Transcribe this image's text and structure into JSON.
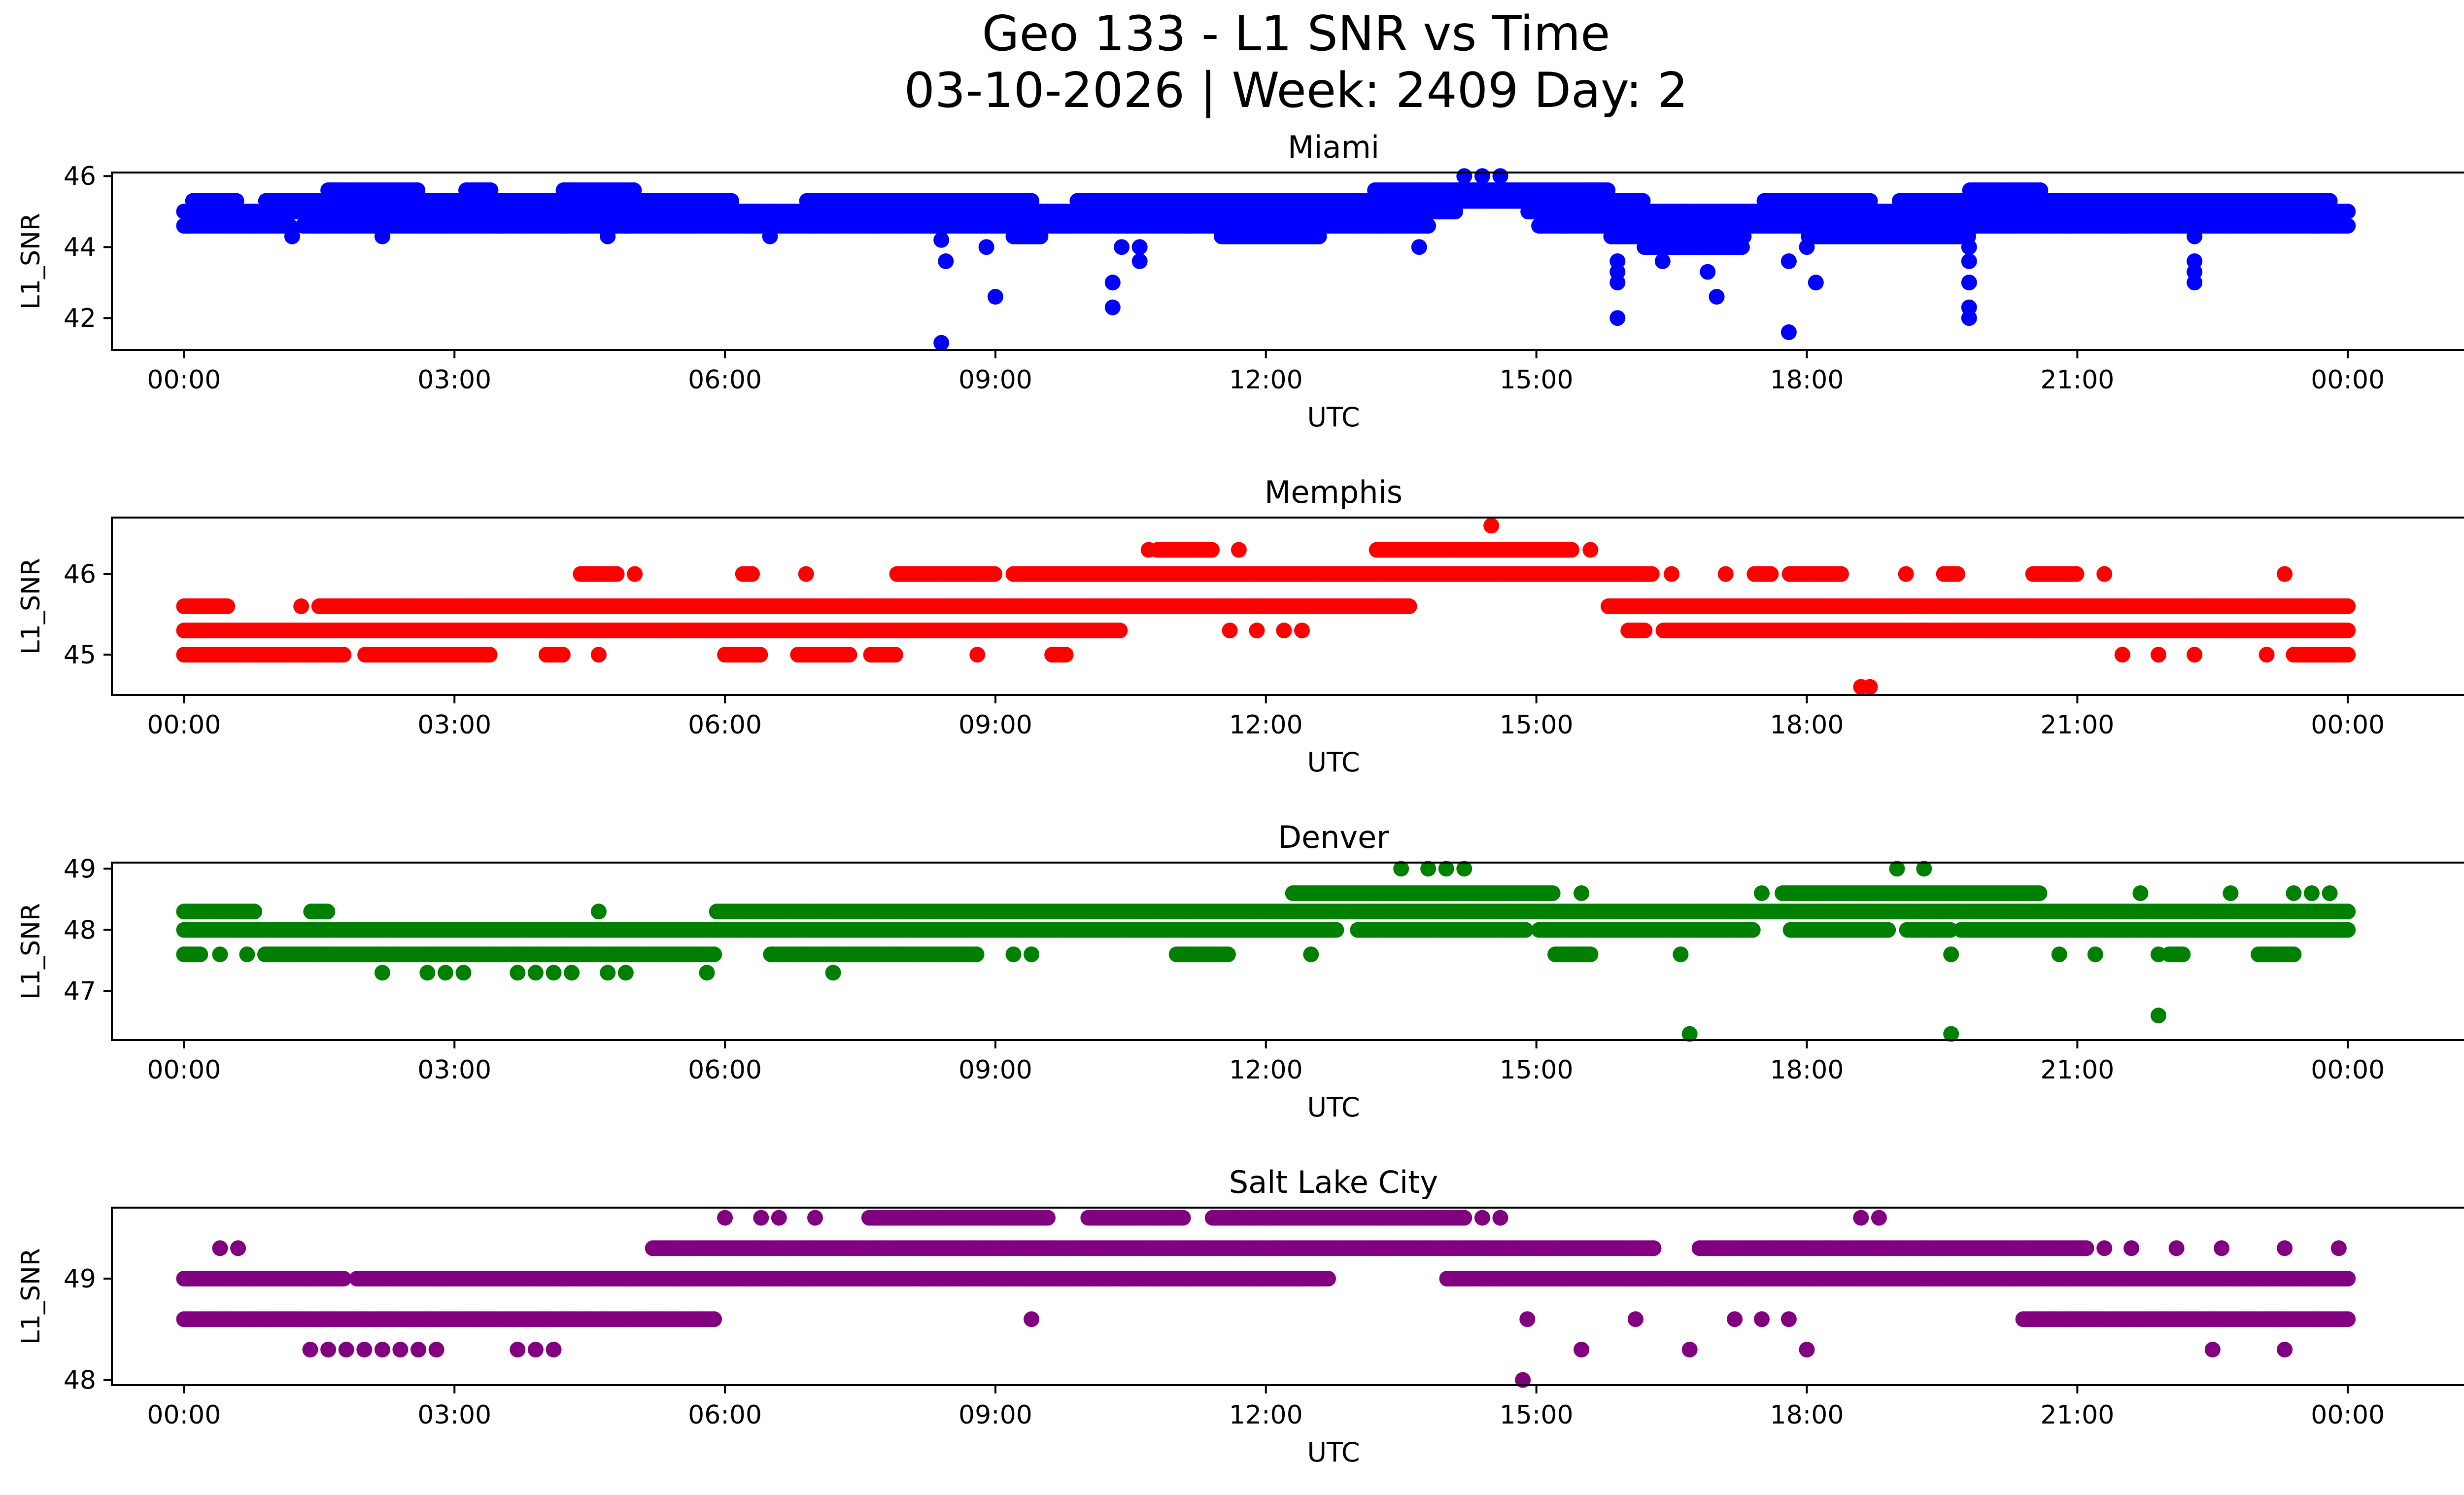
{
  "figure": {
    "title_line1": "Geo 133 - L1 SNR vs Time",
    "title_line2": "03-10-2026 | Week: 2409 Day: 2"
  },
  "chart_data": [
    {
      "type": "scatter",
      "title": "Miami",
      "color": "#0000ff",
      "xlabel": "UTC",
      "ylabel": "L1_SNR",
      "xlim": [
        -0.8,
        26.3
      ],
      "ylim": [
        41.1,
        46.1
      ],
      "xticks": [
        0,
        3,
        6,
        9,
        12,
        15,
        18,
        21,
        24
      ],
      "xticklabels": [
        "00:00",
        "03:00",
        "06:00",
        "09:00",
        "12:00",
        "15:00",
        "18:00",
        "21:00",
        "00:00"
      ],
      "yticks": [
        42,
        44,
        46
      ],
      "yticklabels": [
        "42",
        "44",
        "46"
      ],
      "bands": [
        {
          "y": 44.6,
          "start": 0.0,
          "end": 24.0,
          "gaps": [
            [
              1.2,
              1.3
            ],
            [
              13.8,
              15.0
            ]
          ]
        },
        {
          "y": 45.0,
          "start": 0.0,
          "end": 24.0,
          "gaps": [
            [
              14.1,
              14.9
            ]
          ]
        },
        {
          "y": 45.3,
          "start": 0.1,
          "end": 23.8,
          "gaps": [
            [
              0.6,
              0.9
            ],
            [
              6.1,
              6.9
            ],
            [
              9.4,
              9.9
            ],
            [
              16.2,
              17.5
            ],
            [
              18.7,
              19.0
            ]
          ]
        },
        {
          "y": 45.6,
          "start": 1.6,
          "end": 20.6,
          "gaps": [
            [
              2.6,
              3.1
            ],
            [
              3.4,
              4.2
            ],
            [
              5.0,
              13.2
            ],
            [
              15.8,
              19.8
            ]
          ]
        },
        {
          "y": 44.3,
          "start": 9.2,
          "end": 19.8,
          "gaps": [
            [
              9.5,
              11.5
            ],
            [
              12.6,
              15.8
            ],
            [
              17.3,
              18.0
            ]
          ]
        },
        {
          "y": 44.0,
          "start": 16.2,
          "end": 17.3,
          "gaps": []
        }
      ],
      "points": [
        {
          "x": 1.2,
          "y": 44.3
        },
        {
          "x": 2.2,
          "y": 44.3
        },
        {
          "x": 4.7,
          "y": 44.3
        },
        {
          "x": 6.5,
          "y": 44.3
        },
        {
          "x": 8.4,
          "y": 41.3
        },
        {
          "x": 8.45,
          "y": 43.6
        },
        {
          "x": 8.4,
          "y": 44.2
        },
        {
          "x": 9.0,
          "y": 42.6
        },
        {
          "x": 8.9,
          "y": 44.0
        },
        {
          "x": 10.3,
          "y": 43.0
        },
        {
          "x": 10.3,
          "y": 42.3
        },
        {
          "x": 10.6,
          "y": 43.6
        },
        {
          "x": 10.6,
          "y": 44.0
        },
        {
          "x": 10.4,
          "y": 44.0
        },
        {
          "x": 13.7,
          "y": 44.0
        },
        {
          "x": 14.4,
          "y": 46.0
        },
        {
          "x": 14.6,
          "y": 46.0
        },
        {
          "x": 14.2,
          "y": 46.0
        },
        {
          "x": 15.9,
          "y": 42.0
        },
        {
          "x": 15.9,
          "y": 43.0
        },
        {
          "x": 15.9,
          "y": 43.3
        },
        {
          "x": 15.9,
          "y": 43.6
        },
        {
          "x": 16.4,
          "y": 43.6
        },
        {
          "x": 16.9,
          "y": 43.3
        },
        {
          "x": 17.0,
          "y": 42.6
        },
        {
          "x": 17.8,
          "y": 41.6
        },
        {
          "x": 17.8,
          "y": 43.6
        },
        {
          "x": 18.1,
          "y": 43.0
        },
        {
          "x": 18.0,
          "y": 44.0
        },
        {
          "x": 19.8,
          "y": 42.0
        },
        {
          "x": 19.8,
          "y": 42.3
        },
        {
          "x": 19.8,
          "y": 43.0
        },
        {
          "x": 19.8,
          "y": 43.6
        },
        {
          "x": 19.8,
          "y": 44.0
        },
        {
          "x": 22.3,
          "y": 43.0
        },
        {
          "x": 22.3,
          "y": 43.3
        },
        {
          "x": 22.3,
          "y": 43.6
        },
        {
          "x": 22.3,
          "y": 44.3
        }
      ]
    },
    {
      "type": "scatter",
      "title": "Memphis",
      "color": "#ff0000",
      "xlabel": "UTC",
      "ylabel": "L1_SNR",
      "xlim": [
        -0.8,
        26.3
      ],
      "ylim": [
        44.5,
        46.7
      ],
      "xticks": [
        0,
        3,
        6,
        9,
        12,
        15,
        18,
        21,
        24
      ],
      "xticklabels": [
        "00:00",
        "03:00",
        "06:00",
        "09:00",
        "12:00",
        "15:00",
        "18:00",
        "21:00",
        "00:00"
      ],
      "yticks": [
        45,
        46
      ],
      "yticklabels": [
        "45",
        "46"
      ],
      "bands": [
        {
          "y": 45.0,
          "start": 0.0,
          "end": 24.0,
          "gaps": [
            [
              1.8,
              2.0
            ],
            [
              3.4,
              4.0
            ],
            [
              4.2,
              6.0
            ],
            [
              6.4,
              6.8
            ],
            [
              7.4,
              7.6
            ],
            [
              7.9,
              9.6
            ],
            [
              9.8,
              23.4
            ]
          ]
        },
        {
          "y": 45.3,
          "start": 0.0,
          "end": 24.0,
          "gaps": [
            [
              10.4,
              16.0
            ],
            [
              16.2,
              16.4
            ]
          ]
        },
        {
          "y": 45.6,
          "start": 0.0,
          "end": 24.0,
          "gaps": [
            [
              0.5,
              1.5
            ],
            [
              13.6,
              15.8
            ]
          ]
        },
        {
          "y": 46.0,
          "start": 4.4,
          "end": 21.0,
          "gaps": [
            [
              4.8,
              6.2
            ],
            [
              6.3,
              7.9
            ],
            [
              9.0,
              9.2
            ],
            [
              16.3,
              17.4
            ],
            [
              17.6,
              17.8
            ],
            [
              18.4,
              19.5
            ],
            [
              19.7,
              20.5
            ]
          ]
        },
        {
          "y": 46.3,
          "start": 10.8,
          "end": 15.4,
          "gaps": [
            [
              11.4,
              13.2
            ]
          ]
        }
      ],
      "points": [
        {
          "x": 0.1,
          "y": 45.6
        },
        {
          "x": 0.3,
          "y": 45.6
        },
        {
          "x": 1.3,
          "y": 45.6
        },
        {
          "x": 4.6,
          "y": 45.0
        },
        {
          "x": 4.8,
          "y": 46.0
        },
        {
          "x": 5.0,
          "y": 46.0
        },
        {
          "x": 6.3,
          "y": 46.0
        },
        {
          "x": 6.9,
          "y": 46.0
        },
        {
          "x": 8.8,
          "y": 45.0
        },
        {
          "x": 10.7,
          "y": 46.3
        },
        {
          "x": 11.7,
          "y": 46.3
        },
        {
          "x": 14.5,
          "y": 46.6
        },
        {
          "x": 15.6,
          "y": 46.3
        },
        {
          "x": 11.6,
          "y": 45.3
        },
        {
          "x": 11.9,
          "y": 45.3
        },
        {
          "x": 12.2,
          "y": 45.3
        },
        {
          "x": 12.4,
          "y": 45.3
        },
        {
          "x": 13.4,
          "y": 45.6
        },
        {
          "x": 15.8,
          "y": 45.6
        },
        {
          "x": 16.5,
          "y": 46.0
        },
        {
          "x": 17.1,
          "y": 46.0
        },
        {
          "x": 18.3,
          "y": 46.0
        },
        {
          "x": 18.6,
          "y": 44.6
        },
        {
          "x": 18.7,
          "y": 44.6
        },
        {
          "x": 19.1,
          "y": 46.0
        },
        {
          "x": 19.3,
          "y": 45.3
        },
        {
          "x": 21.3,
          "y": 46.0
        },
        {
          "x": 21.5,
          "y": 45.0
        },
        {
          "x": 21.9,
          "y": 45.0
        },
        {
          "x": 22.3,
          "y": 45.0
        },
        {
          "x": 23.1,
          "y": 45.0
        },
        {
          "x": 23.3,
          "y": 46.0
        }
      ]
    },
    {
      "type": "scatter",
      "title": "Denver",
      "color": "#008000",
      "xlabel": "UTC",
      "ylabel": "L1_SNR",
      "xlim": [
        -0.8,
        26.3
      ],
      "ylim": [
        46.2,
        49.1
      ],
      "xticks": [
        0,
        3,
        6,
        9,
        12,
        15,
        18,
        21,
        24
      ],
      "xticklabels": [
        "00:00",
        "03:00",
        "06:00",
        "09:00",
        "12:00",
        "15:00",
        "18:00",
        "21:00",
        "00:00"
      ],
      "yticks": [
        47,
        48,
        49
      ],
      "yticklabels": [
        "47",
        "48",
        "49"
      ],
      "bands": [
        {
          "y": 48.0,
          "start": 0.0,
          "end": 24.0,
          "gaps": [
            [
              12.8,
              13.0
            ],
            [
              14.9,
              15.0
            ],
            [
              17.4,
              17.8
            ],
            [
              18.9,
              19.1
            ],
            [
              19.6,
              19.7
            ]
          ]
        },
        {
          "y": 48.3,
          "start": 0.0,
          "end": 24.0,
          "gaps": [
            [
              0.8,
              1.4
            ],
            [
              1.6,
              5.9
            ]
          ]
        },
        {
          "y": 47.6,
          "start": 0.0,
          "end": 23.4,
          "gaps": [
            [
              0.2,
              0.9
            ],
            [
              5.9,
              6.5
            ],
            [
              8.8,
              11.0
            ],
            [
              11.6,
              15.2
            ],
            [
              15.6,
              22.0
            ],
            [
              22.2,
              23.0
            ]
          ]
        },
        {
          "y": 48.6,
          "start": 12.3,
          "end": 20.6,
          "gaps": [
            [
              15.2,
              17.7
            ]
          ]
        }
      ],
      "points": [
        {
          "x": 0.4,
          "y": 47.6
        },
        {
          "x": 0.7,
          "y": 47.6
        },
        {
          "x": 2.2,
          "y": 47.3
        },
        {
          "x": 2.7,
          "y": 47.3
        },
        {
          "x": 2.9,
          "y": 47.3
        },
        {
          "x": 3.1,
          "y": 47.3
        },
        {
          "x": 3.7,
          "y": 47.3
        },
        {
          "x": 3.9,
          "y": 47.3
        },
        {
          "x": 4.1,
          "y": 47.3
        },
        {
          "x": 4.3,
          "y": 47.3
        },
        {
          "x": 4.7,
          "y": 47.3
        },
        {
          "x": 4.9,
          "y": 47.3
        },
        {
          "x": 5.8,
          "y": 47.3
        },
        {
          "x": 4.6,
          "y": 48.3
        },
        {
          "x": 7.2,
          "y": 47.3
        },
        {
          "x": 9.2,
          "y": 47.6
        },
        {
          "x": 9.4,
          "y": 47.6
        },
        {
          "x": 12.5,
          "y": 47.6
        },
        {
          "x": 13.5,
          "y": 49.0
        },
        {
          "x": 13.8,
          "y": 49.0
        },
        {
          "x": 14.0,
          "y": 49.0
        },
        {
          "x": 14.2,
          "y": 49.0
        },
        {
          "x": 15.5,
          "y": 48.6
        },
        {
          "x": 15.3,
          "y": 47.6
        },
        {
          "x": 16.6,
          "y": 47.6
        },
        {
          "x": 16.7,
          "y": 46.3
        },
        {
          "x": 17.5,
          "y": 48.6
        },
        {
          "x": 19.0,
          "y": 49.0
        },
        {
          "x": 19.3,
          "y": 49.0
        },
        {
          "x": 19.6,
          "y": 47.6
        },
        {
          "x": 19.6,
          "y": 46.3
        },
        {
          "x": 20.8,
          "y": 47.6
        },
        {
          "x": 21.2,
          "y": 47.6
        },
        {
          "x": 21.7,
          "y": 48.6
        },
        {
          "x": 21.9,
          "y": 47.6
        },
        {
          "x": 21.9,
          "y": 46.6
        },
        {
          "x": 22.7,
          "y": 48.6
        },
        {
          "x": 23.4,
          "y": 48.6
        },
        {
          "x": 23.6,
          "y": 48.6
        },
        {
          "x": 23.8,
          "y": 48.6
        }
      ]
    },
    {
      "type": "scatter",
      "title": "Salt Lake City",
      "color": "#800080",
      "xlabel": "UTC",
      "ylabel": "L1_SNR",
      "xlim": [
        -0.8,
        26.3
      ],
      "ylim": [
        47.95,
        49.7
      ],
      "xticks": [
        0,
        3,
        6,
        9,
        12,
        15,
        18,
        21,
        24
      ],
      "xticklabels": [
        "00:00",
        "03:00",
        "06:00",
        "09:00",
        "12:00",
        "15:00",
        "18:00",
        "21:00",
        "00:00"
      ],
      "yticks": [
        48,
        49
      ],
      "yticklabels": [
        "48",
        "49"
      ],
      "bands": [
        {
          "y": 48.6,
          "start": 0.0,
          "end": 24.0,
          "gaps": [
            [
              5.9,
              20.4
            ]
          ]
        },
        {
          "y": 49.0,
          "start": 0.0,
          "end": 24.0,
          "gaps": [
            [
              1.8,
              1.9
            ],
            [
              12.7,
              14.0
            ]
          ]
        },
        {
          "y": 49.3,
          "start": 5.2,
          "end": 21.1,
          "gaps": [
            [
              16.3,
              16.8
            ]
          ]
        },
        {
          "y": 49.6,
          "start": 7.6,
          "end": 14.2,
          "gaps": [
            [
              9.6,
              10.0
            ],
            [
              11.1,
              11.4
            ]
          ]
        }
      ],
      "points": [
        {
          "x": 0.4,
          "y": 49.3
        },
        {
          "x": 0.6,
          "y": 49.3
        },
        {
          "x": 1.4,
          "y": 48.3
        },
        {
          "x": 1.6,
          "y": 48.3
        },
        {
          "x": 1.8,
          "y": 48.3
        },
        {
          "x": 2.0,
          "y": 48.3
        },
        {
          "x": 2.2,
          "y": 48.3
        },
        {
          "x": 2.4,
          "y": 48.3
        },
        {
          "x": 2.6,
          "y": 48.3
        },
        {
          "x": 2.8,
          "y": 48.3
        },
        {
          "x": 3.7,
          "y": 48.3
        },
        {
          "x": 3.9,
          "y": 48.3
        },
        {
          "x": 4.1,
          "y": 48.3
        },
        {
          "x": 6.0,
          "y": 49.6
        },
        {
          "x": 6.4,
          "y": 49.6
        },
        {
          "x": 6.6,
          "y": 49.6
        },
        {
          "x": 7.0,
          "y": 49.6
        },
        {
          "x": 9.4,
          "y": 48.6
        },
        {
          "x": 11.7,
          "y": 49.6
        },
        {
          "x": 14.4,
          "y": 49.6
        },
        {
          "x": 14.6,
          "y": 49.6
        },
        {
          "x": 14.9,
          "y": 48.6
        },
        {
          "x": 14.85,
          "y": 48.0
        },
        {
          "x": 15.5,
          "y": 48.3
        },
        {
          "x": 16.1,
          "y": 48.6
        },
        {
          "x": 16.7,
          "y": 48.3
        },
        {
          "x": 17.2,
          "y": 48.6
        },
        {
          "x": 17.5,
          "y": 48.6
        },
        {
          "x": 17.8,
          "y": 48.6
        },
        {
          "x": 18.0,
          "y": 48.3
        },
        {
          "x": 18.6,
          "y": 49.6
        },
        {
          "x": 18.8,
          "y": 49.6
        },
        {
          "x": 21.3,
          "y": 49.3
        },
        {
          "x": 21.6,
          "y": 49.3
        },
        {
          "x": 22.1,
          "y": 49.3
        },
        {
          "x": 22.5,
          "y": 48.3
        },
        {
          "x": 22.6,
          "y": 49.3
        },
        {
          "x": 23.3,
          "y": 48.3
        },
        {
          "x": 23.3,
          "y": 49.3
        },
        {
          "x": 23.9,
          "y": 49.3
        }
      ]
    }
  ]
}
